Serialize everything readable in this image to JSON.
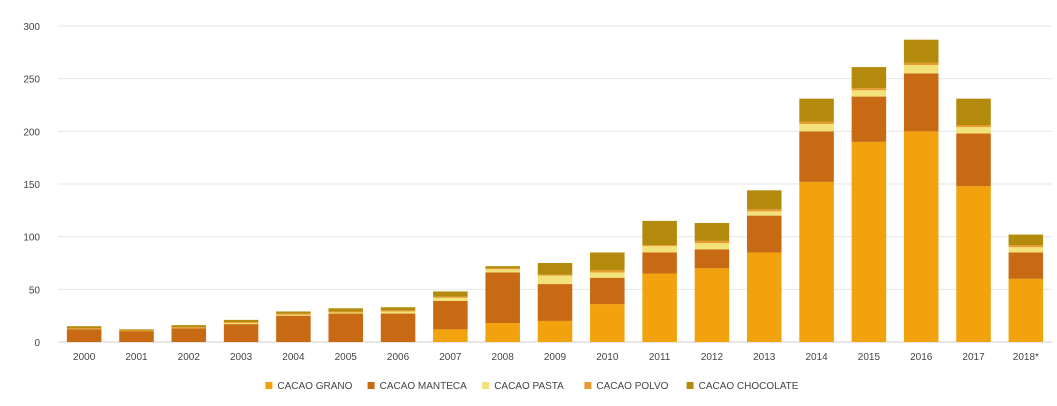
{
  "colors": {
    "background": "#ffffff",
    "gridline": "#e6e6e6",
    "axis": "#cfcfcf"
  },
  "chart_data": {
    "type": "bar",
    "stacked": true,
    "title": "",
    "xlabel": "",
    "ylabel": "",
    "ylim": [
      0,
      300
    ],
    "yticks": [
      0,
      50,
      100,
      150,
      200,
      250,
      300
    ],
    "grid": true,
    "legend_position": "bottom",
    "categories": [
      "2000",
      "2001",
      "2002",
      "2003",
      "2004",
      "2005",
      "2006",
      "2007",
      "2008",
      "2009",
      "2010",
      "2011",
      "2012",
      "2013",
      "2014",
      "2015",
      "2016",
      "2017",
      "2018*"
    ],
    "series": [
      {
        "name": "CACAO GRANO",
        "color": "#f2a20c",
        "values": [
          0,
          0,
          0,
          0,
          0,
          0,
          0,
          12,
          18,
          20,
          36,
          65,
          70,
          85,
          152,
          190,
          200,
          148,
          60
        ]
      },
      {
        "name": "CACAO MANTECA",
        "color": "#c86a14",
        "values": [
          12,
          10,
          13,
          17,
          25,
          27,
          27,
          27,
          48,
          35,
          25,
          20,
          18,
          35,
          48,
          43,
          55,
          50,
          25
        ]
      },
      {
        "name": "CACAO PASTA",
        "color": "#f3e27a",
        "values": [
          0,
          0,
          0,
          1,
          1,
          1,
          2,
          3,
          3,
          8,
          5,
          6,
          6,
          4,
          7,
          6,
          8,
          6,
          5
        ]
      },
      {
        "name": "CACAO POLVO",
        "color": "#e89a2c",
        "values": [
          1,
          1,
          1,
          1,
          1,
          1,
          1,
          1,
          1,
          1,
          2,
          1,
          2,
          2,
          2,
          2,
          2,
          2,
          2
        ]
      },
      {
        "name": "CACAO CHOCOLATE",
        "color": "#b38a0c",
        "values": [
          2,
          1,
          2,
          2,
          2,
          3,
          3,
          5,
          2,
          11,
          17,
          23,
          17,
          18,
          22,
          20,
          22,
          25,
          10
        ]
      }
    ]
  }
}
